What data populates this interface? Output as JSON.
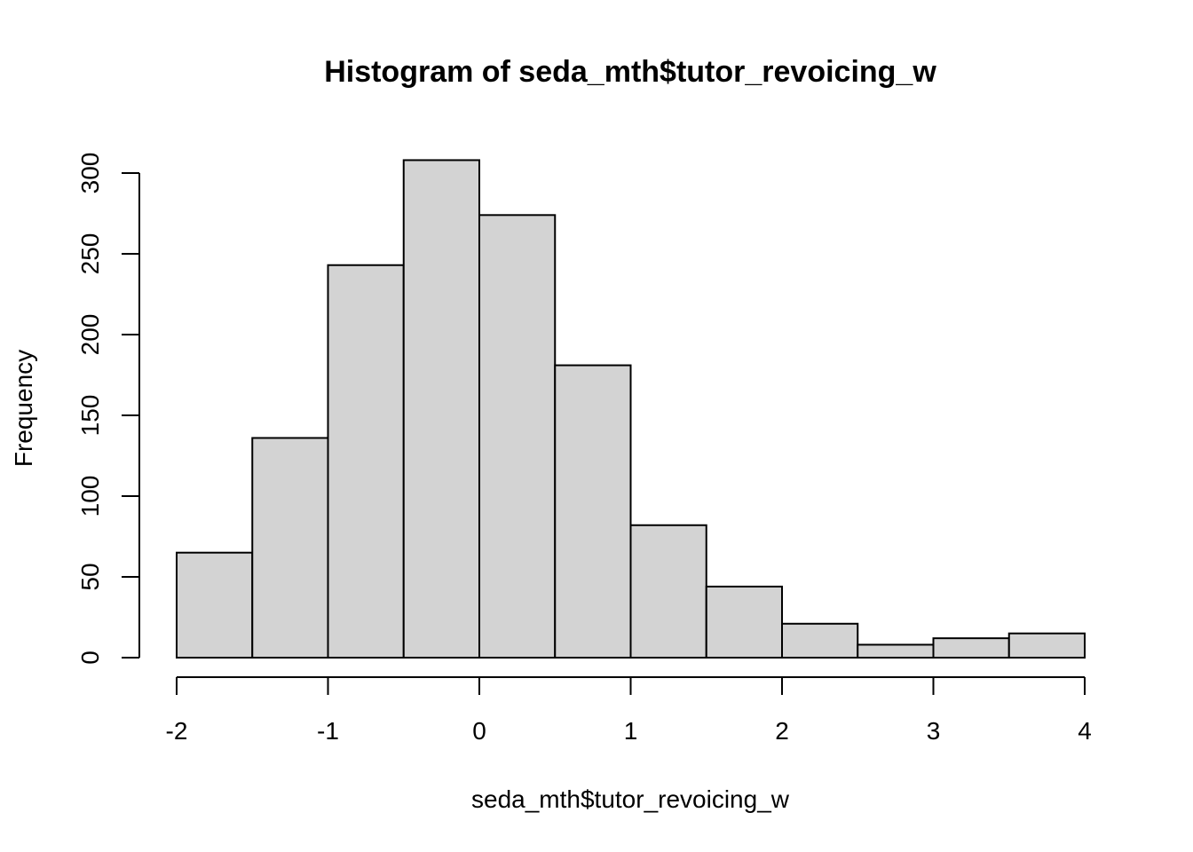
{
  "chart_data": {
    "type": "bar",
    "title": "Histogram of seda_mth$tutor_revoicing_w",
    "xlabel": "seda_mth$tutor_revoicing_w",
    "ylabel": "Frequency",
    "bin_edges": [
      -2,
      -1.5,
      -1,
      -0.5,
      0,
      0.5,
      1,
      1.5,
      2,
      2.5,
      3,
      3.5,
      4
    ],
    "values": [
      65,
      136,
      243,
      308,
      274,
      181,
      82,
      44,
      21,
      8,
      12,
      15
    ],
    "xlim": [
      -2,
      4
    ],
    "ylim": [
      0,
      300
    ],
    "x_ticks": [
      -2,
      -1,
      0,
      1,
      2,
      3,
      4
    ],
    "x_tick_labels": [
      "-2",
      "-1",
      "0",
      "1",
      "2",
      "3",
      "4"
    ],
    "y_ticks": [
      0,
      50,
      100,
      150,
      200,
      250,
      300
    ],
    "y_tick_labels": [
      "0",
      "50",
      "100",
      "150",
      "200",
      "250",
      "300"
    ],
    "bar_fill": "#d3d3d3",
    "grid": false
  }
}
